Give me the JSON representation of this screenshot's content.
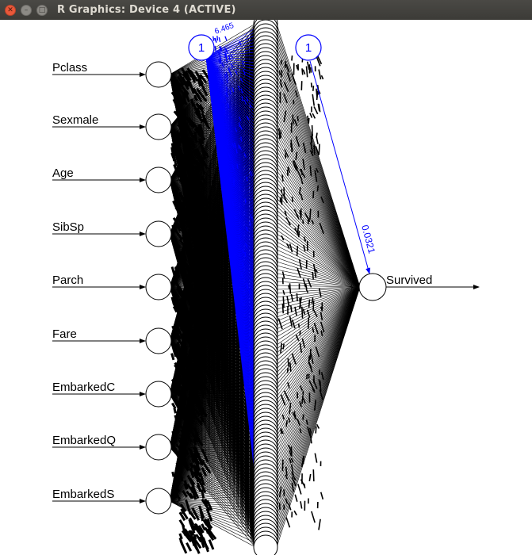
{
  "window": {
    "title": "R Graphics: Device 4 (ACTIVE)",
    "buttons": {
      "close": "✕",
      "minimize": "–",
      "maximize": "□"
    }
  },
  "network": {
    "inputs": [
      "Pclass",
      "Sexmale",
      "Age",
      "SibSp",
      "Parch",
      "Fare",
      "EmbarkedC",
      "EmbarkedQ",
      "EmbarkedS"
    ],
    "output": "Survived",
    "bias_labels": [
      "1",
      "1"
    ],
    "weight_labels": [
      "0.0321",
      "6.465"
    ],
    "colors": {
      "weights": "#000000",
      "bias": "#0000ff",
      "node_stroke": "#000000"
    }
  }
}
